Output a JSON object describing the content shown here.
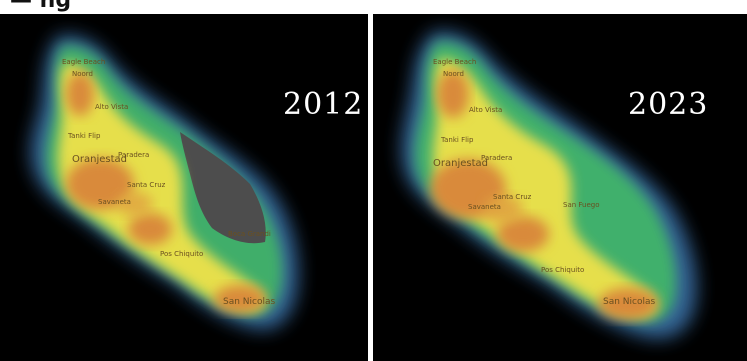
{
  "header": {
    "text": "— ng"
  },
  "maps": [
    {
      "year": "2012",
      "place_labels": [
        {
          "text": "Eagle Beach"
        },
        {
          "text": "Noord"
        },
        {
          "text": "Alto Vista"
        },
        {
          "text": "Tanki Flip"
        },
        {
          "text": "Oranjestad"
        },
        {
          "text": "Paradera"
        },
        {
          "text": "Santa Cruz"
        },
        {
          "text": "Savaneta"
        },
        {
          "text": "Pos Chiquito"
        },
        {
          "text": "San Nicolas"
        },
        {
          "text": "Boca Grandi"
        }
      ]
    },
    {
      "year": "2023",
      "place_labels": [
        {
          "text": "Eagle Beach"
        },
        {
          "text": "Noord"
        },
        {
          "text": "Alto Vista"
        },
        {
          "text": "Tanki Flip"
        },
        {
          "text": "Oranjestad"
        },
        {
          "text": "Paradera"
        },
        {
          "text": "Santa Cruz"
        },
        {
          "text": "San Fuego"
        },
        {
          "text": "Savaneta"
        },
        {
          "text": "Pos Chiquito"
        },
        {
          "text": "San Nicolas"
        }
      ]
    }
  ],
  "colors": {
    "background": "#000000",
    "density_high": "#d88a3a",
    "density_mid": "#e8e24a",
    "density_low": "#5ec07a",
    "edge": "#3f7fb0",
    "gap_gray": "#4a4a4a"
  }
}
